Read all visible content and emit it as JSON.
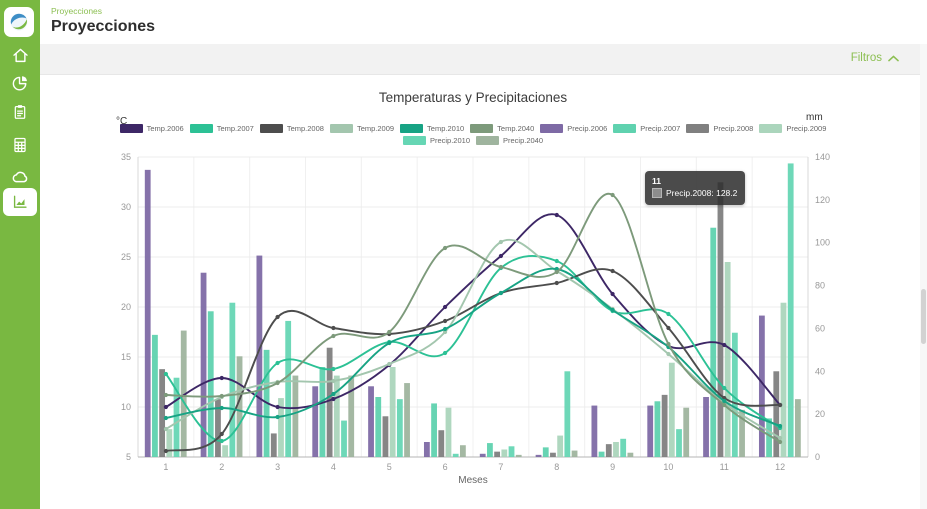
{
  "header": {
    "breadcrumb": "Proyecciones",
    "title": "Proyecciones"
  },
  "filters": {
    "label": "Filtros"
  },
  "sidebar": {
    "icons": [
      "app-logo",
      "home-icon",
      "pie-chart-icon",
      "clipboard-icon",
      "calculator-icon",
      "cloud-icon",
      "area-chart-icon"
    ],
    "active_item": "area-chart"
  },
  "colors": {
    "sidebar_green": "#79b841",
    "accent_green": "#8cbf52"
  },
  "chart_data": {
    "type": "bar+line",
    "title": "Temperaturas y Precipitaciones",
    "xlabel": "Meses",
    "categories": [
      "1",
      "2",
      "3",
      "4",
      "5",
      "6",
      "7",
      "8",
      "9",
      "10",
      "11",
      "12"
    ],
    "y_left": {
      "label": "°C",
      "min": 5,
      "max": 35,
      "ticks": [
        35,
        30,
        25,
        20,
        15,
        10,
        5
      ]
    },
    "y_right": {
      "label": "mm",
      "min": 0,
      "max": 140,
      "ticks": [
        140,
        120,
        100,
        80,
        60,
        40,
        20,
        0
      ]
    },
    "grid": true,
    "legend_position": "top",
    "legend_rows": [
      [
        "Temp.2006",
        "Temp.2007",
        "Temp.2008",
        "Temp.2009",
        "Temp.2010",
        "Temp.2040",
        "Precip.2006",
        "Precip.2007",
        "Precip.2008",
        "Precip.2009"
      ],
      [
        "Precip.2010",
        "Precip.2040"
      ]
    ],
    "series": [
      {
        "name": "Temp.2006",
        "type": "line",
        "axis": "left",
        "color": "#3d2766",
        "values": [
          10.0,
          12.9,
          10.0,
          10.8,
          14.2,
          20.0,
          25.1,
          29.2,
          21.3,
          16.1,
          16.2,
          10.2
        ]
      },
      {
        "name": "Temp.2007",
        "type": "line",
        "axis": "left",
        "color": "#2cc195",
        "values": [
          13.3,
          6.6,
          14.4,
          13.8,
          16.5,
          15.4,
          23.9,
          24.6,
          19.6,
          19.3,
          11.9,
          7.9
        ]
      },
      {
        "name": "Temp.2008",
        "type": "line",
        "axis": "left",
        "color": "#4d4d4d",
        "values": [
          5.6,
          7.3,
          19.0,
          17.9,
          17.3,
          18.6,
          21.4,
          22.4,
          23.6,
          17.9,
          10.9,
          10.2
        ]
      },
      {
        "name": "Temp.2009",
        "type": "line",
        "axis": "left",
        "color": "#a3c6ae",
        "values": [
          7.8,
          11.0,
          12.5,
          12.6,
          14.3,
          17.5,
          26.5,
          23.6,
          19.8,
          15.3,
          10.4,
          6.9
        ]
      },
      {
        "name": "Temp.2010",
        "type": "line",
        "axis": "left",
        "color": "#17a384",
        "values": [
          8.9,
          9.9,
          9.0,
          11.3,
          16.4,
          17.8,
          21.4,
          23.8,
          19.7,
          16.0,
          10.6,
          8.1
        ]
      },
      {
        "name": "Temp.2040",
        "type": "line",
        "axis": "left",
        "color": "#7d9a7b",
        "values": [
          11.2,
          11.1,
          12.4,
          17.1,
          17.5,
          25.9,
          24.0,
          23.5,
          31.2,
          16.3,
          10.2,
          6.5
        ]
      },
      {
        "name": "Precip.2006",
        "type": "bar",
        "axis": "right",
        "color": "#7e6aa5",
        "values": [
          134,
          86,
          94,
          33,
          33,
          7,
          1.5,
          1,
          24,
          24,
          28,
          66
        ]
      },
      {
        "name": "Precip.2007",
        "type": "bar",
        "axis": "right",
        "color": "#5fd2af",
        "values": [
          57,
          68,
          50,
          42,
          28,
          25,
          6.5,
          4.5,
          2.5,
          26,
          107,
          18
        ]
      },
      {
        "name": "Precip.2008",
        "type": "bar",
        "axis": "right",
        "color": "#808080",
        "values": [
          41,
          27,
          11,
          51,
          19,
          12.5,
          2.5,
          2,
          6,
          29,
          128.2,
          40
        ]
      },
      {
        "name": "Precip.2009",
        "type": "bar",
        "axis": "right",
        "color": "#abd5bc",
        "values": [
          13,
          5.5,
          27.5,
          38,
          42,
          23,
          3.5,
          10,
          7,
          44,
          91,
          72
        ]
      },
      {
        "name": "Precip.2010",
        "type": "bar",
        "axis": "right",
        "color": "#66d6b4",
        "values": [
          37,
          72,
          63.5,
          17,
          27,
          1.5,
          5,
          40,
          8.5,
          13,
          58,
          137
        ]
      },
      {
        "name": "Precip.2040",
        "type": "bar",
        "axis": "right",
        "color": "#9fb49e",
        "values": [
          59,
          47,
          38,
          38,
          34.5,
          5.5,
          1,
          3,
          2,
          23,
          22,
          27
        ]
      }
    ],
    "tooltip": {
      "category": "11",
      "text": "Precip.2008: 128.2",
      "series": "Precip.2008",
      "value": 128.2,
      "swatch_color": "#8d8d8d"
    }
  }
}
